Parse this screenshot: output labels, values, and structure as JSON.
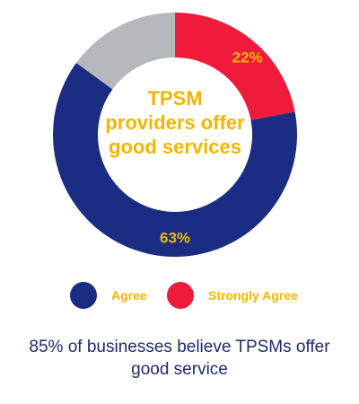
{
  "chart_data": {
    "type": "pie",
    "title": "TPSM providers offer good services",
    "slices": [
      {
        "name": "Strongly Agree",
        "value": 22,
        "label": "22%",
        "color": "#ee1c3a"
      },
      {
        "name": "Agree",
        "value": 63,
        "label": "63%",
        "color": "#1b2d82"
      },
      {
        "name": "",
        "value": 15,
        "label": "",
        "color": "#b5b9be"
      }
    ],
    "legend": [
      {
        "name": "Agree",
        "color": "#1b2d82"
      },
      {
        "name": "Strongly Agree",
        "color": "#ee1c3a"
      }
    ],
    "legend_position": "bottom",
    "label_color": "#f4b500"
  },
  "caption": "85% of businesses believe TPSMs offer good service"
}
